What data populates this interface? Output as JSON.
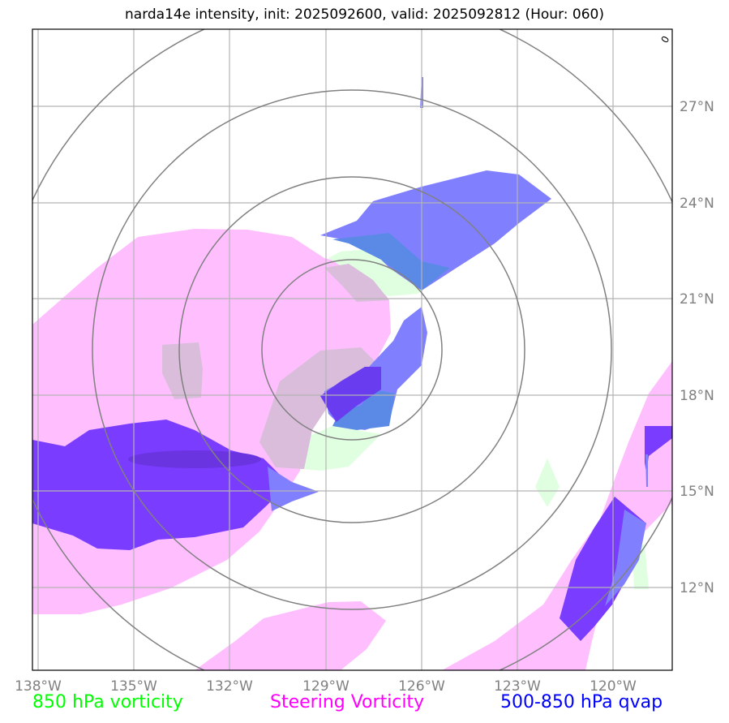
{
  "title": "narda14e intensity, init: 2025092600, valid: 2025092812 (Hour: 060)",
  "corner_label": "0",
  "lon_labels": [
    "138°W",
    "135°W",
    "132°W",
    "129°W",
    "126°W",
    "123°W",
    "120°W"
  ],
  "lat_labels": [
    "27°N",
    "24°N",
    "21°N",
    "18°N",
    "15°N",
    "12°N"
  ],
  "legend": [
    {
      "label": "850 hPa vorticity",
      "color": "#00ff00"
    },
    {
      "label": "Steering Vorticity",
      "color": "#ff00ff"
    },
    {
      "label": "500-850 hPa qvap",
      "color": "#0000ff"
    }
  ],
  "colors": {
    "vorticity_850": "#e0ffe0",
    "steering_vorticity": "#ffbfff",
    "qvap": "#5c5cff",
    "qvap_dark": "#7a3cff",
    "range_rings": "#808080",
    "grid": "#b3b3b3"
  }
}
